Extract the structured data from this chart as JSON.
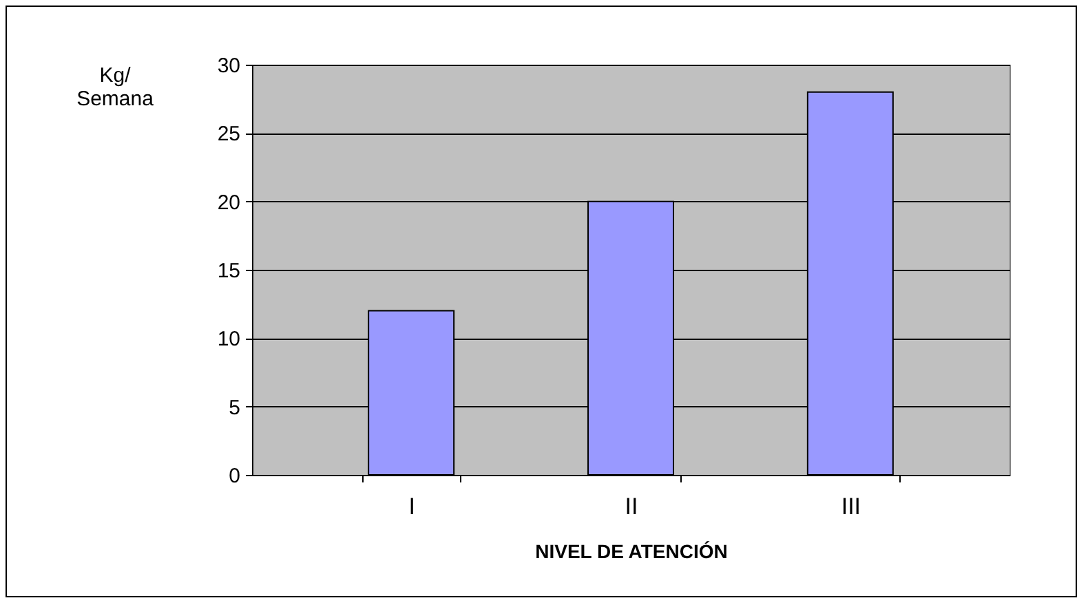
{
  "chart_data": {
    "type": "bar",
    "xlabel": "NIVEL DE ATENCIÓN",
    "ylabel": "Kg/ Semana",
    "categories": [
      "I",
      "II",
      "III"
    ],
    "values": [
      12,
      20,
      28
    ],
    "color": "#9999ff",
    "ylim": [
      0,
      30
    ],
    "yticks": [
      0,
      5,
      10,
      15,
      20,
      25,
      30
    ],
    "grid": "y"
  }
}
